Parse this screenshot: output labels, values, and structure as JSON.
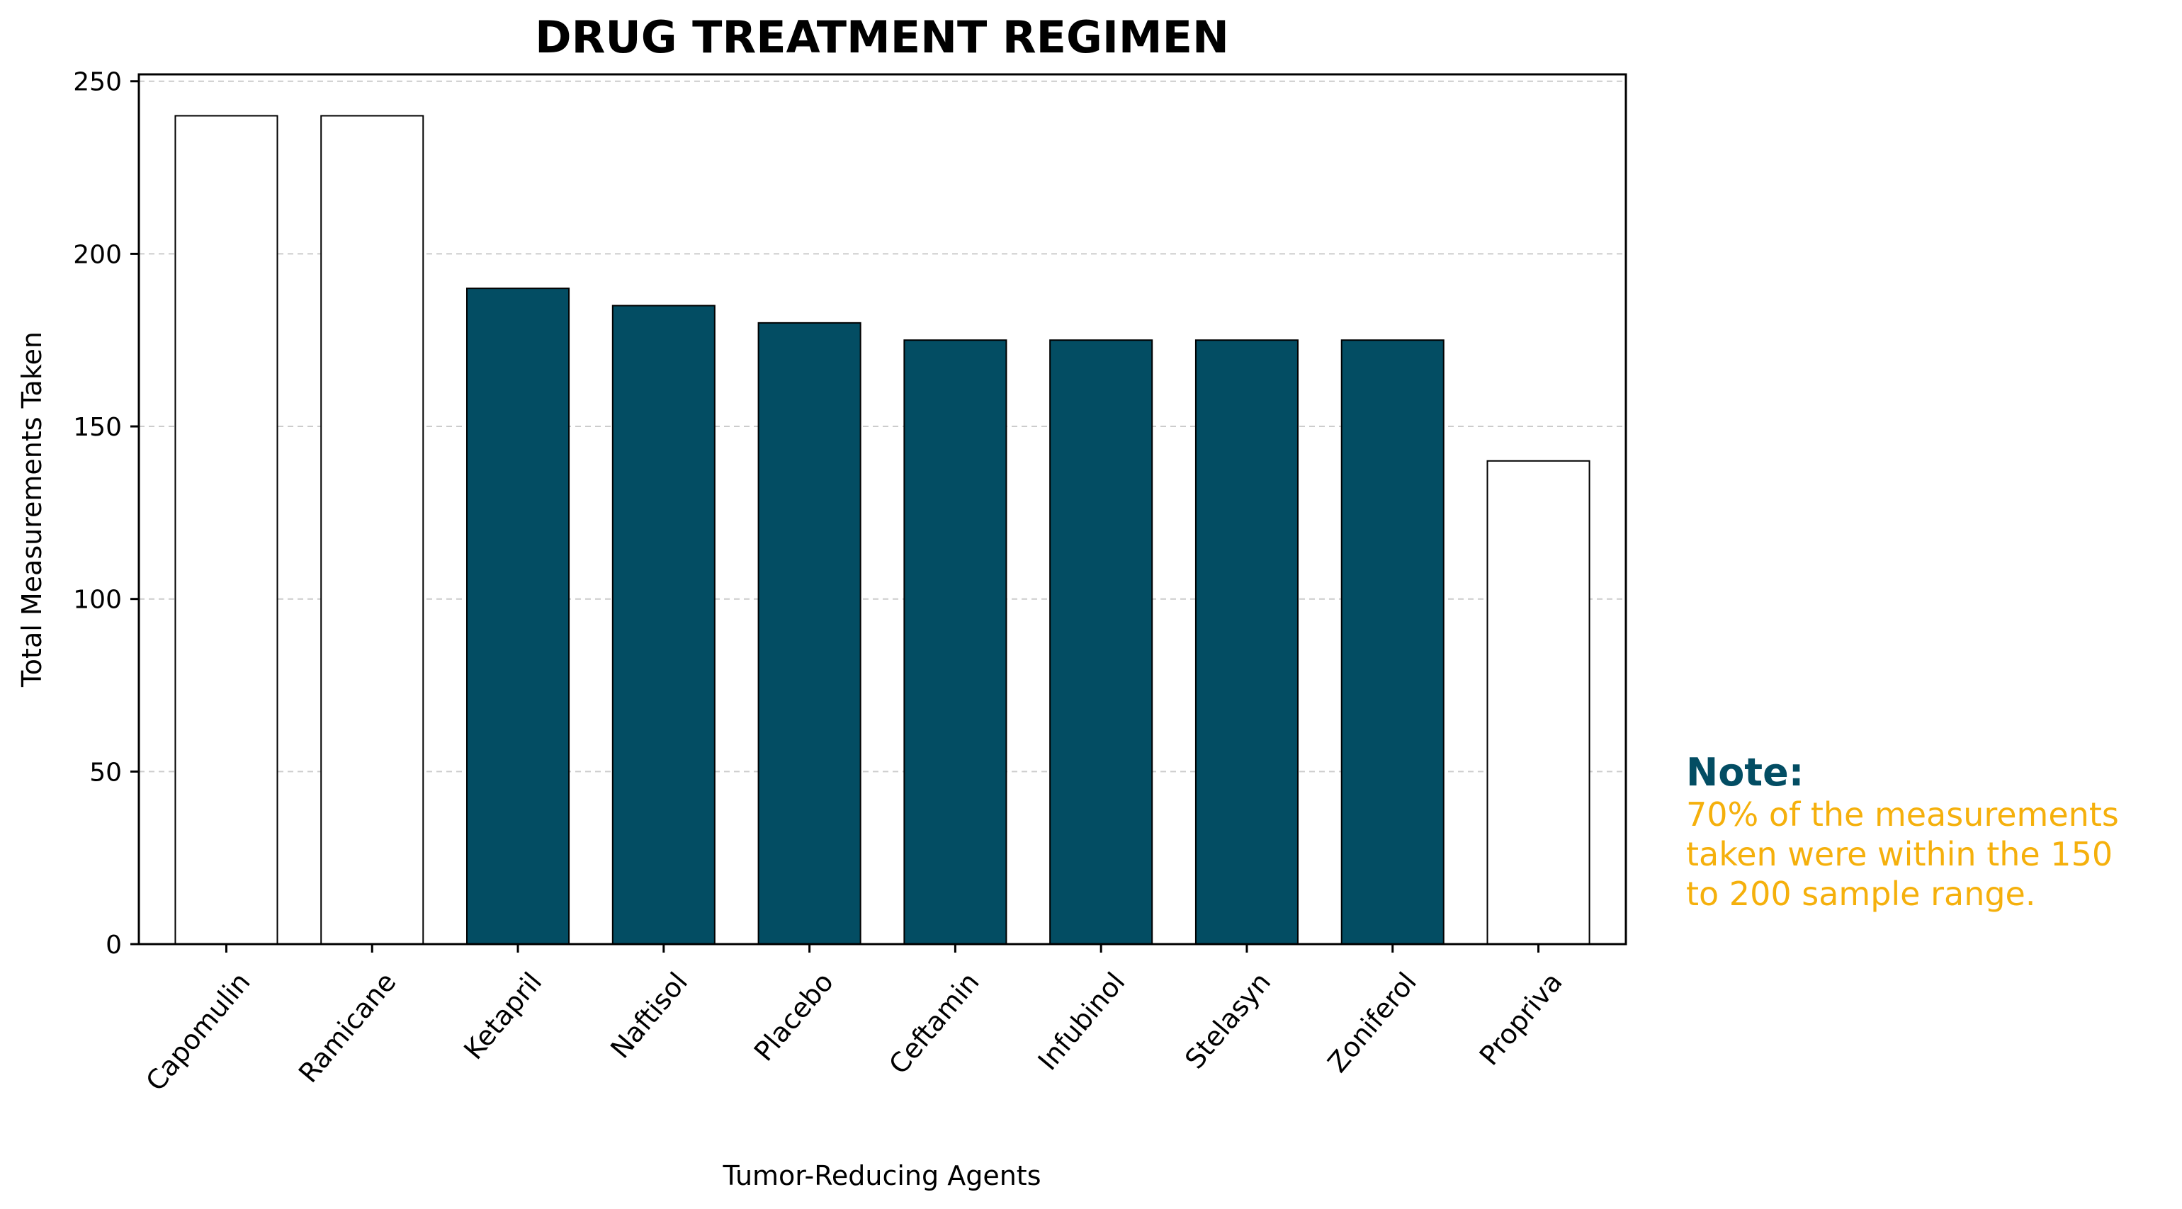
{
  "colors": {
    "highlight": "#034d63",
    "plain": "#ffffff",
    "edge": "#000000",
    "grid": "#cccccc",
    "note_title": "#034d63",
    "note_text": "#f5b00c"
  },
  "note": {
    "title": "Note:",
    "lines": [
      "70% of the measurements",
      "taken were within the 150",
      "to 200 sample range."
    ]
  },
  "chart_data": {
    "type": "bar",
    "title": "DRUG TREATMENT REGIMEN",
    "xlabel": "Tumor-Reducing Agents",
    "ylabel": "Total Measurements Taken",
    "categories": [
      "Capomulin",
      "Ramicane",
      "Ketapril",
      "Naftisol",
      "Placebo",
      "Ceftamin",
      "Infubinol",
      "Stelasyn",
      "Zoniferol",
      "Propriva"
    ],
    "values": [
      240,
      240,
      190,
      185,
      180,
      175,
      175,
      175,
      175,
      140
    ],
    "highlighted": [
      false,
      false,
      true,
      true,
      true,
      true,
      true,
      true,
      true,
      false
    ],
    "ylim": [
      0,
      252
    ],
    "yticks": [
      0,
      50,
      100,
      150,
      200,
      250
    ],
    "grid": "y-dashed",
    "legend": "none"
  }
}
